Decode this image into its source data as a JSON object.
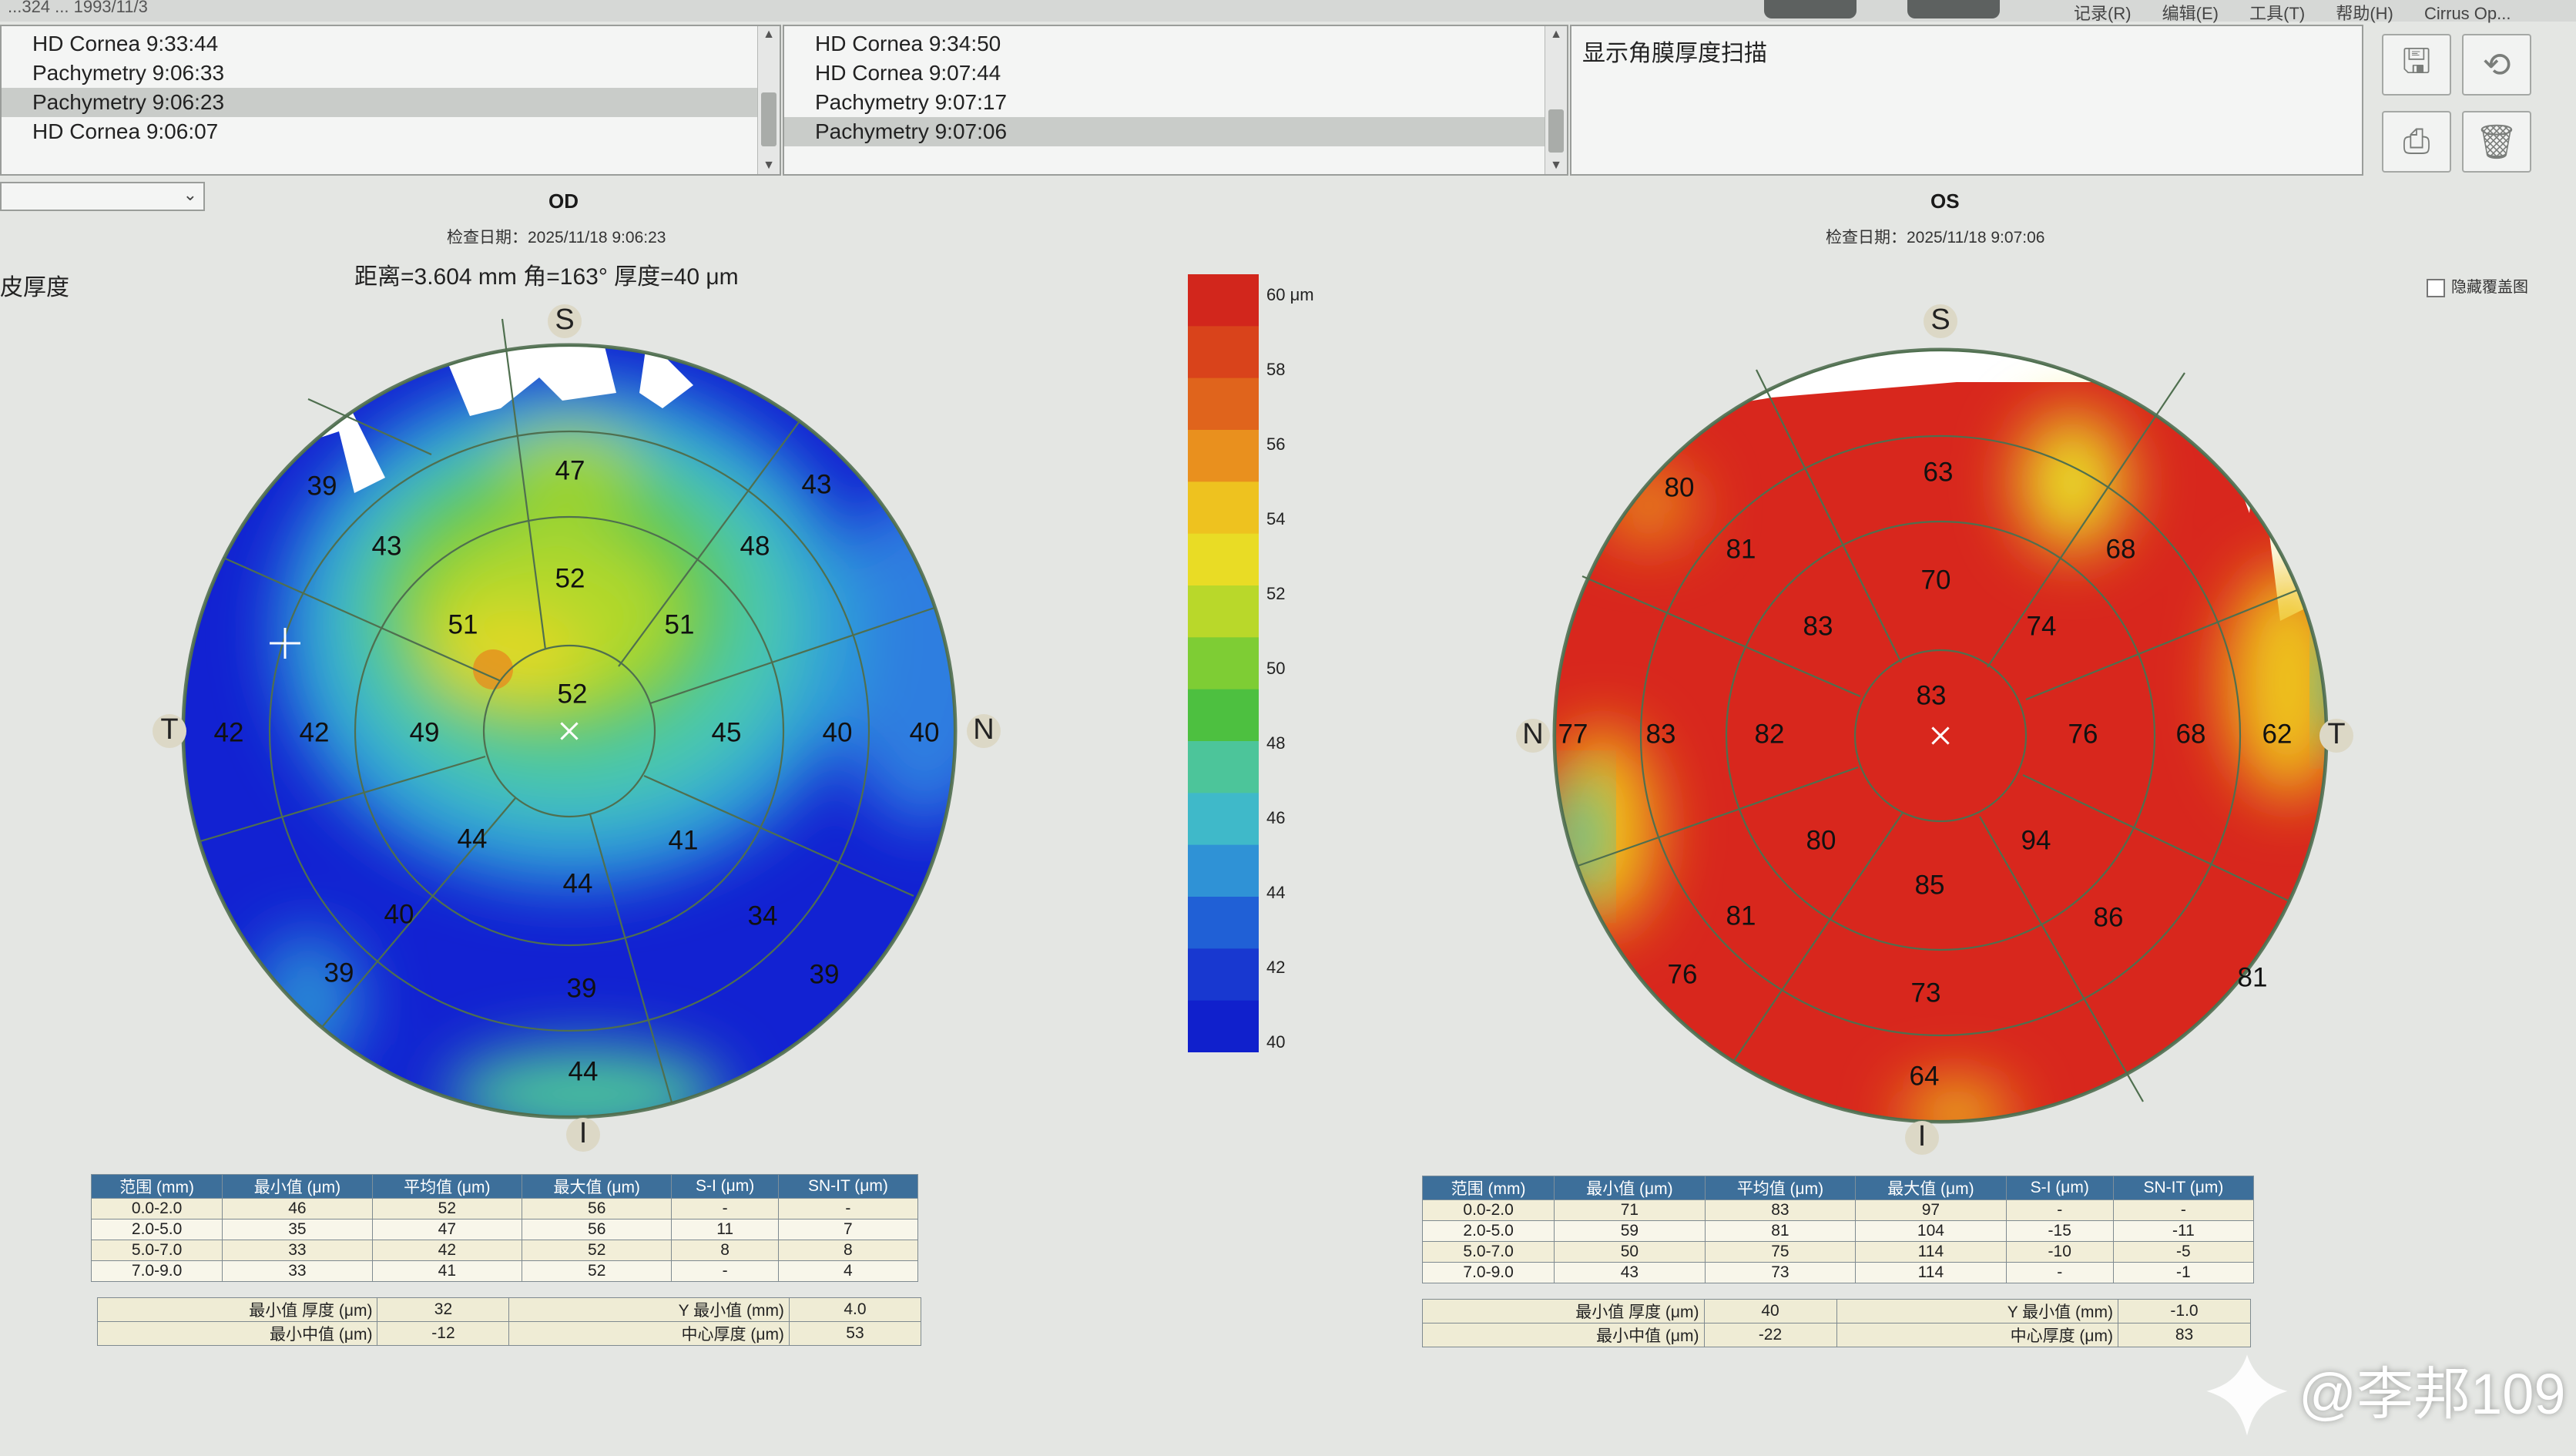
{
  "menu": [
    "记录(R)",
    "编辑(E)",
    "工具(T)",
    "帮助(H)",
    "Cirrus Op..."
  ],
  "window": {
    "top_fragment": "...324  ...  1993/11/3"
  },
  "lists": {
    "left": [
      {
        "label": "HD Cornea 9:33:44",
        "selected": false
      },
      {
        "label": "Pachymetry 9:06:33",
        "selected": false
      },
      {
        "label": "Pachymetry 9:06:23",
        "selected": true
      },
      {
        "label": "HD Cornea 9:06:07",
        "selected": false
      }
    ],
    "right": [
      {
        "label": "HD Cornea 9:34:50",
        "selected": false
      },
      {
        "label": "HD Cornea 9:07:44",
        "selected": false
      },
      {
        "label": "Pachymetry 9:07:17",
        "selected": false
      },
      {
        "label": "Pachymetry 9:07:06",
        "selected": true
      }
    ]
  },
  "description": "显示角膜厚度扫描",
  "toolbar": {
    "icons": [
      "save-icon",
      "back-icon",
      "print-icon",
      "trash-icon"
    ]
  },
  "side_label": "皮厚度",
  "hide_overlay": "隐藏覆盖图",
  "od": {
    "title": "OD",
    "date": "检查日期：2025/11/18 9:06:23",
    "measure": "距离=3.604 mm  角=163° 厚度=40 μm",
    "orient": {
      "S": "S",
      "I": "I",
      "T": "T",
      "N": "N"
    },
    "zones": [
      "52",
      "52",
      "51",
      "45",
      "41",
      "44",
      "49",
      "51",
      "47",
      "48",
      "40",
      "34",
      "39",
      "44",
      "40",
      "42",
      "43",
      "43",
      "39",
      "40",
      "39",
      "39",
      "44",
      "42",
      "40"
    ],
    "table_header": [
      "范围 (mm)",
      "最小值 (μm)",
      "平均值 (μm)",
      "最大值 (μm)",
      "S-I (μm)",
      "SN-IT (μm)"
    ],
    "table_rows": [
      [
        "0.0-2.0",
        "46",
        "52",
        "56",
        "-",
        "-"
      ],
      [
        "2.0-5.0",
        "35",
        "47",
        "56",
        "11",
        "7"
      ],
      [
        "5.0-7.0",
        "33",
        "42",
        "52",
        "8",
        "8"
      ],
      [
        "7.0-9.0",
        "33",
        "41",
        "52",
        "-",
        "4"
      ]
    ],
    "summary": [
      [
        "最小值 厚度 (μm)",
        "32",
        "Y 最小值 (mm)",
        "4.0"
      ],
      [
        "最小中值 (μm)",
        "-12",
        "中心厚度 (μm)",
        "53"
      ]
    ]
  },
  "os": {
    "title": "OS",
    "date": "检查日期：2025/11/18 9:07:06",
    "orient": {
      "S": "S",
      "I": "I",
      "T": "T",
      "N": "N"
    },
    "zones": [
      "83",
      "70",
      "74",
      "76",
      "94",
      "85",
      "80",
      "82",
      "83",
      "63",
      "68",
      "68",
      "86",
      "81",
      "73",
      "64",
      "76",
      "81",
      "83",
      "81",
      "80",
      "62",
      "77"
    ],
    "table_header": [
      "范围 (mm)",
      "最小值 (μm)",
      "平均值 (μm)",
      "最大值 (μm)",
      "S-I (μm)",
      "SN-IT (μm)"
    ],
    "table_rows": [
      [
        "0.0-2.0",
        "71",
        "83",
        "97",
        "-",
        "-"
      ],
      [
        "2.0-5.0",
        "59",
        "81",
        "104",
        "-15",
        "-11"
      ],
      [
        "5.0-7.0",
        "50",
        "75",
        "114",
        "-10",
        "-5"
      ],
      [
        "7.0-9.0",
        "43",
        "73",
        "114",
        "-",
        "-1"
      ]
    ],
    "summary": [
      [
        "最小值 厚度 (μm)",
        "40",
        "Y 最小值 (mm)",
        "-1.0"
      ],
      [
        "最小中值 (μm)",
        "-22",
        "中心厚度 (μm)",
        "83"
      ]
    ]
  },
  "colorbar": {
    "labels": [
      "60 μm",
      "58",
      "56",
      "54",
      "52",
      "50",
      "48",
      "46",
      "44",
      "42",
      "40"
    ],
    "colors": [
      "#d2261c",
      "#d9431b",
      "#e0641c",
      "#e9901e",
      "#eec21f",
      "#e9dc25",
      "#b9d82a",
      "#7ecd34",
      "#4dc040",
      "#4cc59a",
      "#3fb9c9",
      "#2f92d6",
      "#2060d6",
      "#1838d0",
      "#1020cc"
    ]
  },
  "watermark": "@李邦109"
}
